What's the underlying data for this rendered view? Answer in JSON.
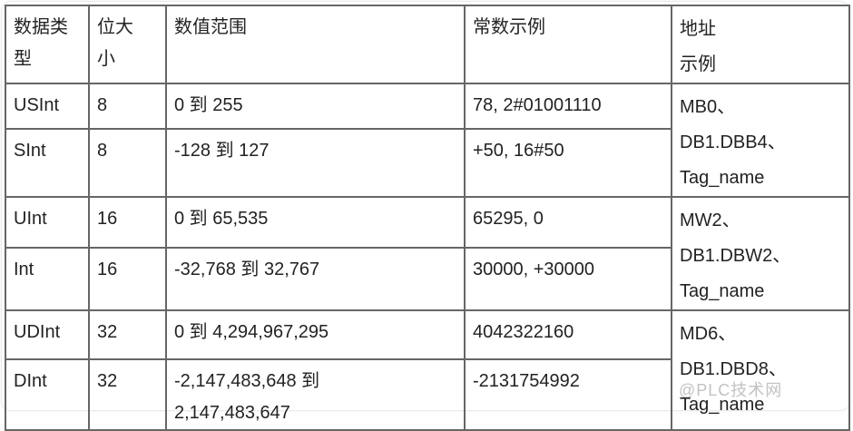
{
  "headers": [
    "数据类型",
    "位大小",
    "数值范围",
    "常数示例",
    "地址示例"
  ],
  "header_lines": {
    "type": [
      "数据类",
      "型"
    ],
    "bits": [
      "位大",
      "小"
    ],
    "address": [
      "地址",
      "示例"
    ]
  },
  "rows": [
    {
      "type": "USInt",
      "bits": "8",
      "range": [
        "0 到 255"
      ],
      "example": "78, 2#01001110"
    },
    {
      "type": "SInt",
      "bits": "8",
      "range": [
        "-128 到 127"
      ],
      "example": "+50, 16#50"
    },
    {
      "type": "UInt",
      "bits": "16",
      "range": [
        "0 到 65,535"
      ],
      "example": "65295, 0"
    },
    {
      "type": "Int",
      "bits": "16",
      "range": [
        "-32,768 到 32,767"
      ],
      "example": "30000, +30000"
    },
    {
      "type": "UDInt",
      "bits": "32",
      "range": [
        "0 到 4,294,967,295"
      ],
      "example": "4042322160"
    },
    {
      "type": "DInt",
      "bits": "32",
      "range": [
        "-2,147,483,648 到",
        "2,147,483,647"
      ],
      "example": "-2131754992"
    }
  ],
  "addresses": [
    [
      "MB0、",
      "DB1.DBB4、",
      "Tag_name"
    ],
    [
      "MW2、",
      "DB1.DBW2、",
      "Tag_name"
    ],
    [
      "MD6、",
      "DB1.DBD8、",
      "Tag_name"
    ]
  ],
  "watermark": "@PLC技术网"
}
